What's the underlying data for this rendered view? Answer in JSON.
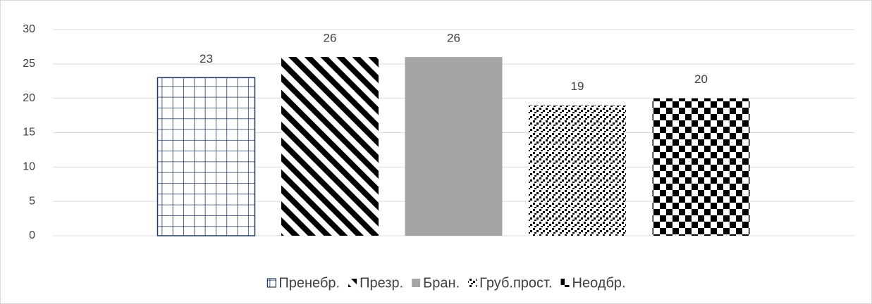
{
  "chart_data": {
    "type": "bar",
    "categories": [
      null
    ],
    "series": [
      {
        "name": "Пренебр.",
        "color": "#1f3864",
        "pattern": "grid",
        "values": [
          23
        ]
      },
      {
        "name": "Презр.",
        "color": "#000000",
        "pattern": "diagonal-stripes",
        "values": [
          26
        ]
      },
      {
        "name": "Бран.",
        "color": "#a5a5a5",
        "pattern": "solid",
        "values": [
          26
        ]
      },
      {
        "name": "Груб.прост.",
        "color": "#000000",
        "pattern": "dots",
        "values": [
          19
        ]
      },
      {
        "name": "Неодбр.",
        "color": "#000000",
        "pattern": "checkerboard",
        "values": [
          20
        ]
      }
    ],
    "ylim": [
      0,
      30
    ],
    "yticks": [
      0,
      5,
      10,
      15,
      20,
      25,
      30
    ],
    "grid": true,
    "legend": "bottom",
    "data_labels": true
  }
}
